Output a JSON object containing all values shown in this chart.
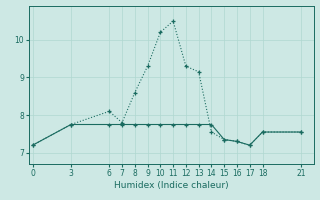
{
  "xlabel": "Humidex (Indice chaleur)",
  "bg_color": "#cde8e4",
  "line_color": "#1a6b60",
  "grid_color": "#b0d8d0",
  "line1_x": [
    0,
    3,
    6,
    7,
    8,
    9,
    10,
    11,
    12,
    13,
    14,
    15,
    16,
    17,
    18,
    21
  ],
  "line1_y": [
    7.2,
    7.75,
    8.1,
    7.8,
    8.6,
    9.3,
    10.2,
    10.5,
    9.3,
    9.15,
    7.55,
    7.35,
    7.3,
    7.2,
    7.55,
    7.55
  ],
  "line2_x": [
    0,
    3,
    6,
    7,
    8,
    9,
    10,
    11,
    12,
    13,
    14,
    15,
    16,
    17,
    18,
    21
  ],
  "line2_y": [
    7.2,
    7.75,
    7.75,
    7.75,
    7.75,
    7.75,
    7.75,
    7.75,
    7.75,
    7.75,
    7.75,
    7.35,
    7.3,
    7.2,
    7.55,
    7.55
  ],
  "xticks": [
    0,
    3,
    6,
    7,
    8,
    9,
    10,
    11,
    12,
    13,
    14,
    15,
    16,
    17,
    18,
    21
  ],
  "yticks": [
    7,
    8,
    9,
    10
  ],
  "ylim": [
    6.7,
    10.9
  ],
  "xlim": [
    -0.3,
    22.0
  ]
}
